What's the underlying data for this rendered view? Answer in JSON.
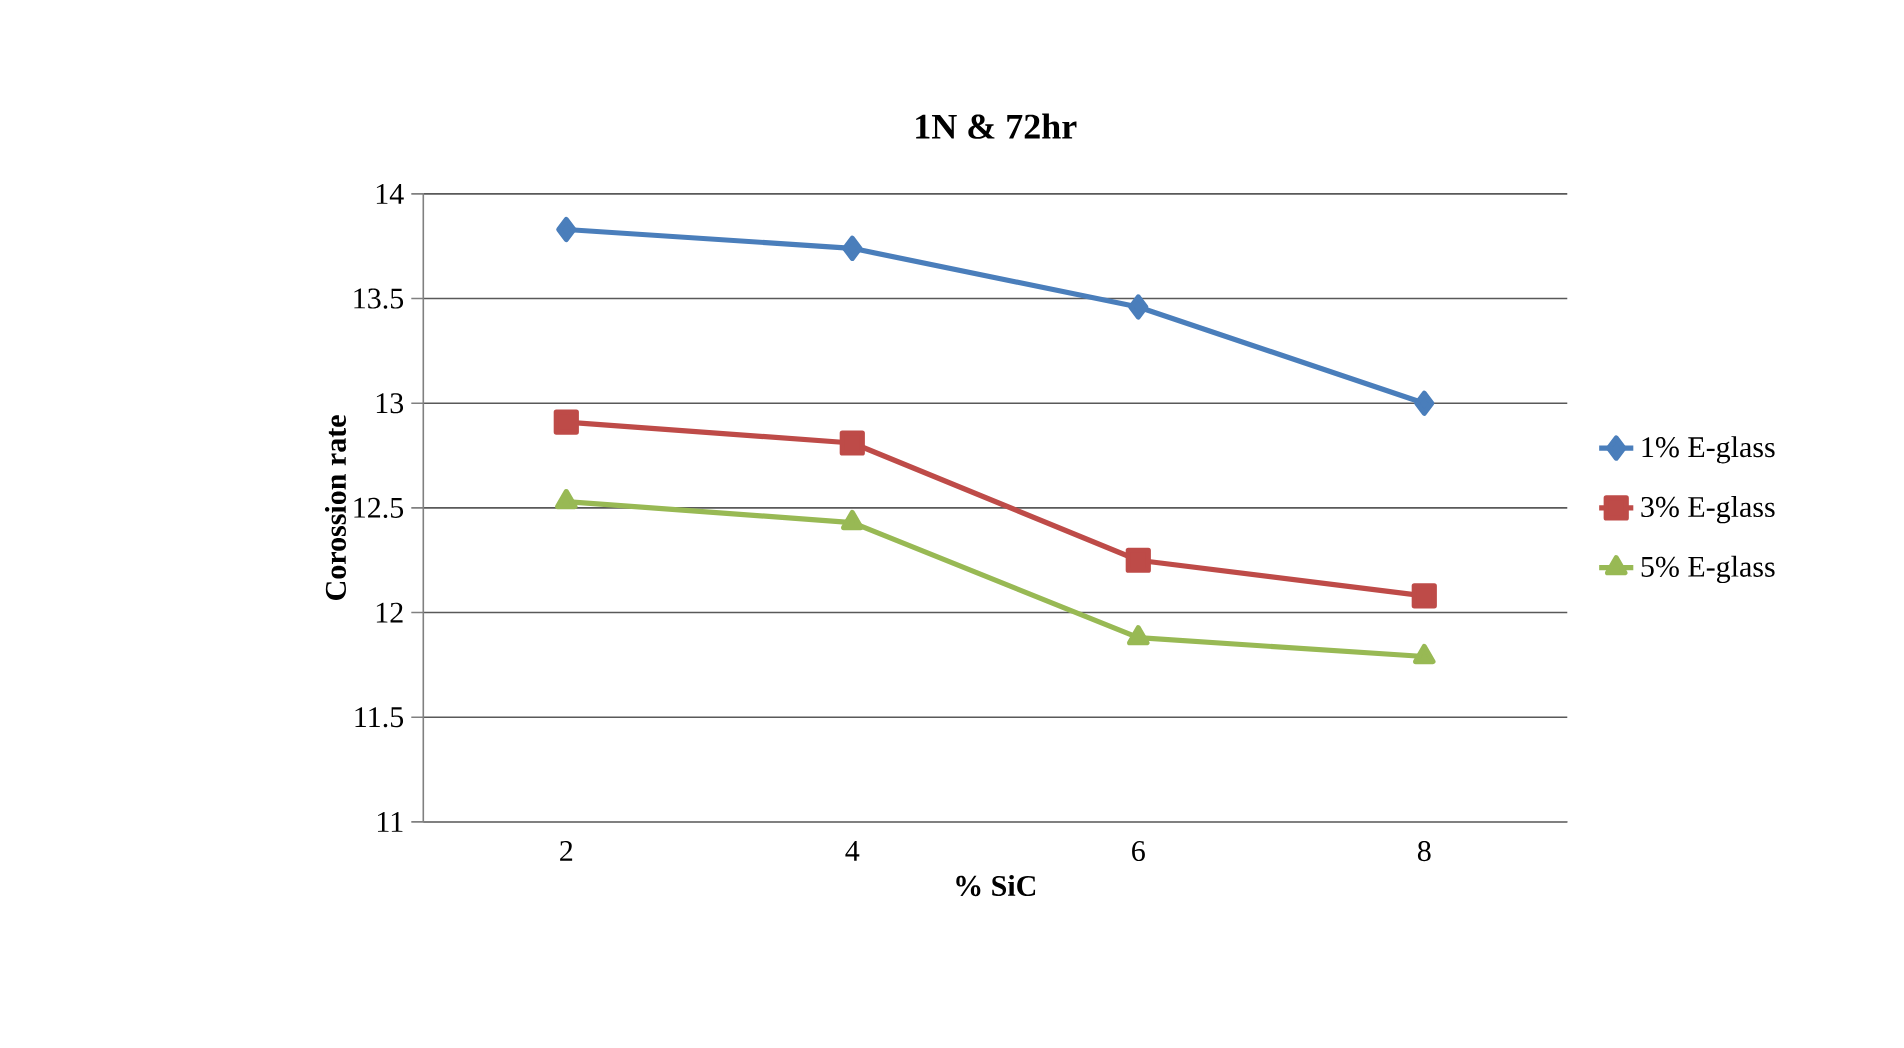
{
  "chart_data": {
    "type": "line",
    "title": "1N & 72hr",
    "xlabel": "% SiC",
    "ylabel": "Corossion rate",
    "categories": [
      "2",
      "4",
      "6",
      "8"
    ],
    "series": [
      {
        "name": "1% E-glass",
        "color": "#4a7ebb",
        "marker": "diamond",
        "values": [
          13.83,
          13.74,
          13.46,
          13.0
        ]
      },
      {
        "name": "3% E-glass",
        "color": "#be4b48",
        "marker": "square",
        "values": [
          12.91,
          12.81,
          12.25,
          12.08
        ]
      },
      {
        "name": "5% E-glass",
        "color": "#98b954",
        "marker": "triangle",
        "values": [
          12.53,
          12.43,
          11.88,
          11.79
        ]
      }
    ],
    "ylim": [
      11,
      14
    ],
    "yticks": [
      11,
      11.5,
      12,
      12.5,
      13,
      13.5,
      14
    ],
    "grid": "y",
    "legend": "right"
  }
}
